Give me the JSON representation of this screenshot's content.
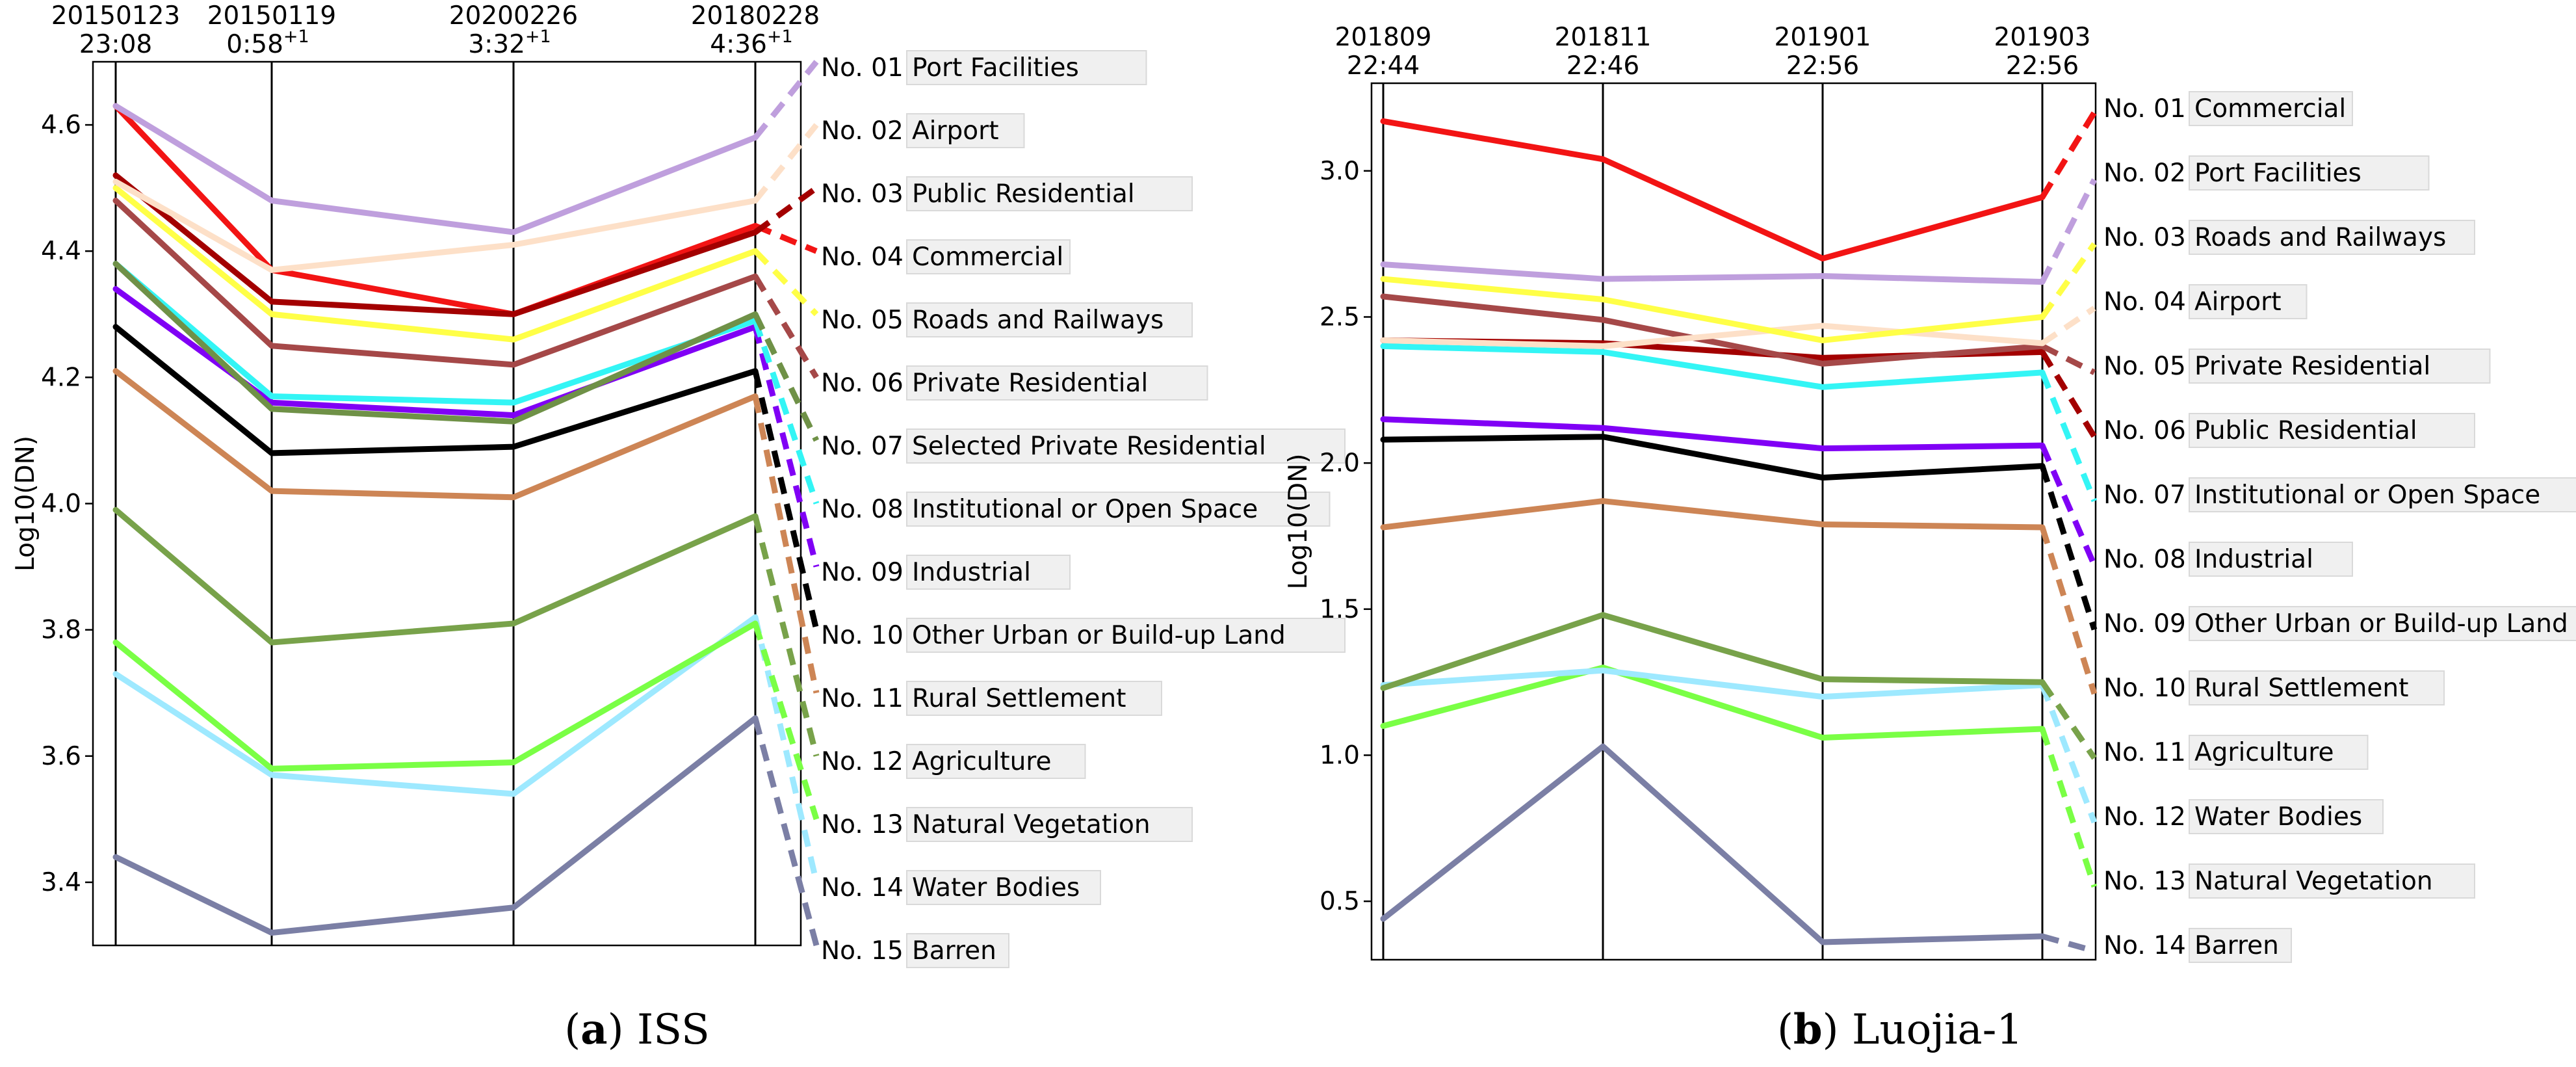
{
  "chart_data": [
    {
      "type": "line",
      "panel_letter": "a",
      "panel_name": "ISS",
      "ylabel": "Log10(DN)",
      "ylim": [
        3.3,
        4.7
      ],
      "yticks": [
        3.4,
        3.6,
        3.8,
        4.0,
        4.2,
        4.4,
        4.6
      ],
      "ytick_labels": [
        "3.4",
        "3.6",
        "3.8",
        "4.0",
        "4.2",
        "4.4",
        "4.6"
      ],
      "grid": false,
      "timepoints": [
        {
          "date": "20150123",
          "time": "23:08",
          "sup": ""
        },
        {
          "date": "20150119",
          "time": "0:58",
          "sup": "+1"
        },
        {
          "date": "20200226",
          "time": "3:32",
          "sup": "+1"
        },
        {
          "date": "20180228",
          "time": "4:36",
          "sup": "+1"
        }
      ],
      "series": [
        {
          "name": "Port Facilities",
          "color": "#bf9fdd",
          "values": [
            4.63,
            4.48,
            4.43,
            4.58
          ],
          "dash_end": 4.7
        },
        {
          "name": "Airport",
          "color": "#fde0c8",
          "values": [
            4.51,
            4.37,
            4.41,
            4.48
          ],
          "dash_end": 4.6
        },
        {
          "name": "Public Residential",
          "color": "#a30000",
          "values": [
            4.52,
            4.32,
            4.3,
            4.43
          ],
          "dash_end": 4.5
        },
        {
          "name": "Commercial",
          "color": "#f21414",
          "values": [
            4.63,
            4.37,
            4.3,
            4.44
          ],
          "dash_end": 4.4
        },
        {
          "name": "Roads and Railways",
          "color": "#ffff47",
          "values": [
            4.5,
            4.3,
            4.26,
            4.4
          ],
          "dash_end": 4.3
        },
        {
          "name": "Private Residential",
          "color": "#a54848",
          "values": [
            4.48,
            4.25,
            4.22,
            4.36
          ],
          "dash_end": 4.2
        },
        {
          "name": "Selected Private Residential",
          "color": "#6f9147",
          "values": [
            4.38,
            4.15,
            4.13,
            4.3
          ],
          "dash_end": 4.1
        },
        {
          "name": "Institutional or Open Space",
          "color": "#33f5f5",
          "values": [
            4.38,
            4.17,
            4.16,
            4.29
          ],
          "dash_end": 4.0
        },
        {
          "name": "Industrial",
          "color": "#8000f5",
          "values": [
            4.34,
            4.16,
            4.14,
            4.28
          ],
          "dash_end": 3.9
        },
        {
          "name": "Other Urban or Build-up Land",
          "color": "#000000",
          "values": [
            4.28,
            4.08,
            4.09,
            4.21
          ],
          "dash_end": 3.8
        },
        {
          "name": "Rural Settlement",
          "color": "#cd8555",
          "values": [
            4.21,
            4.02,
            4.01,
            4.17
          ],
          "dash_end": 3.7
        },
        {
          "name": "Agriculture",
          "color": "#78a24a",
          "values": [
            3.99,
            3.78,
            3.81,
            3.98
          ],
          "dash_end": 3.6
        },
        {
          "name": "Natural Vegetation",
          "color": "#7aff45",
          "values": [
            3.78,
            3.58,
            3.59,
            3.81
          ],
          "dash_end": 3.5
        },
        {
          "name": "Water Bodies",
          "color": "#9ee9ff",
          "values": [
            3.73,
            3.57,
            3.54,
            3.82
          ],
          "dash_end": 3.4
        },
        {
          "name": "Barren",
          "color": "#7b7fa5",
          "values": [
            3.44,
            3.32,
            3.36,
            3.66
          ],
          "dash_end": 3.3
        }
      ]
    },
    {
      "type": "line",
      "panel_letter": "b",
      "panel_name": "Luojia-1",
      "ylabel": "Log10(DN)",
      "ylim": [
        0.3,
        3.3
      ],
      "yticks": [
        0.5,
        1.0,
        1.5,
        2.0,
        2.5,
        3.0
      ],
      "ytick_labels": [
        "0.5",
        "1.0",
        "1.5",
        "2.0",
        "2.5",
        "3.0"
      ],
      "grid": false,
      "timepoints": [
        {
          "date": "201809",
          "time": "22:44",
          "sup": ""
        },
        {
          "date": "201811",
          "time": "22:46",
          "sup": ""
        },
        {
          "date": "201901",
          "time": "22:56",
          "sup": ""
        },
        {
          "date": "201903",
          "time": "22:56",
          "sup": ""
        }
      ],
      "series": [
        {
          "name": "Commercial",
          "color": "#f21414",
          "values": [
            3.17,
            3.04,
            2.7,
            2.91
          ],
          "dash_end": 3.2
        },
        {
          "name": "Port Facilities",
          "color": "#bf9fdd",
          "values": [
            2.68,
            2.63,
            2.64,
            2.62
          ],
          "dash_end": 2.97
        },
        {
          "name": "Roads and Railways",
          "color": "#ffff47",
          "values": [
            2.63,
            2.56,
            2.42,
            2.5
          ],
          "dash_end": 2.75
        },
        {
          "name": "Airport",
          "color": "#fde0c8",
          "values": [
            2.42,
            2.4,
            2.47,
            2.41
          ],
          "dash_end": 2.53
        },
        {
          "name": "Private Residential",
          "color": "#a54848",
          "values": [
            2.57,
            2.49,
            2.34,
            2.4
          ],
          "dash_end": 2.31
        },
        {
          "name": "Public Residential",
          "color": "#a30000",
          "values": [
            2.42,
            2.41,
            2.36,
            2.38
          ],
          "dash_end": 2.09
        },
        {
          "name": "Institutional or Open Space",
          "color": "#33f5f5",
          "values": [
            2.4,
            2.38,
            2.26,
            2.31
          ],
          "dash_end": 1.87
        },
        {
          "name": "Industrial",
          "color": "#8000f5",
          "values": [
            2.15,
            2.12,
            2.05,
            2.06
          ],
          "dash_end": 1.65
        },
        {
          "name": "Other Urban or Build-up Land",
          "color": "#000000",
          "values": [
            2.08,
            2.09,
            1.95,
            1.99
          ],
          "dash_end": 1.43
        },
        {
          "name": "Rural Settlement",
          "color": "#cd8555",
          "values": [
            1.78,
            1.87,
            1.79,
            1.78
          ],
          "dash_end": 1.21
        },
        {
          "name": "Agriculture",
          "color": "#78a24a",
          "values": [
            1.23,
            1.48,
            1.26,
            1.25
          ],
          "dash_end": 0.99
        },
        {
          "name": "Water Bodies",
          "color": "#9ee9ff",
          "values": [
            1.24,
            1.29,
            1.2,
            1.24
          ],
          "dash_end": 0.77
        },
        {
          "name": "Natural Vegetation",
          "color": "#7aff45",
          "values": [
            1.1,
            1.3,
            1.06,
            1.09
          ],
          "dash_end": 0.55
        },
        {
          "name": "Barren",
          "color": "#7b7fa5",
          "values": [
            0.44,
            1.03,
            0.36,
            0.38
          ],
          "dash_end": 0.33
        }
      ]
    }
  ]
}
